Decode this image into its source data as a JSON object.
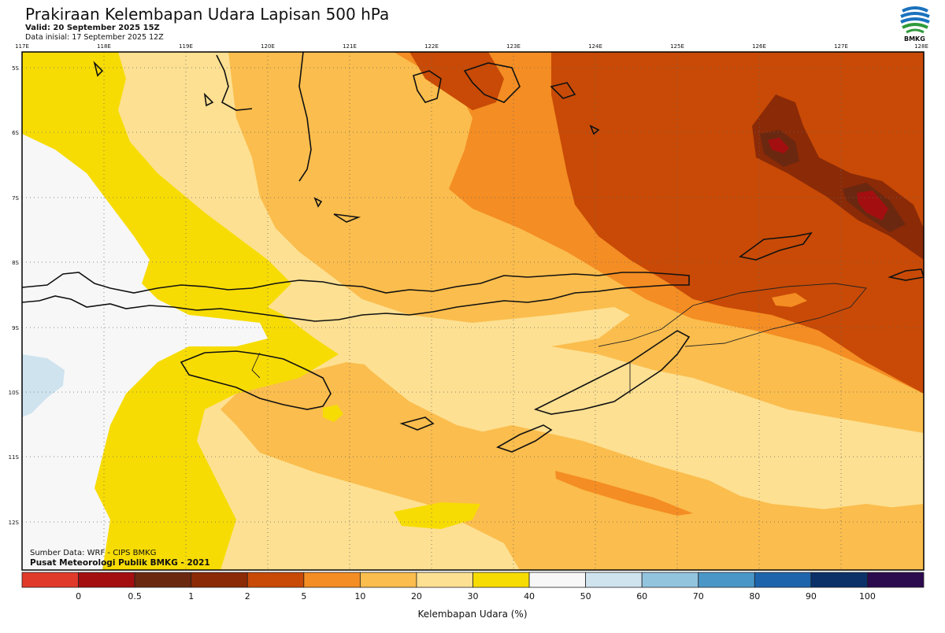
{
  "header": {
    "title": "Prakiraan Kelembapan Udara Lapisan 500 hPa",
    "valid": "Valid: 20 September 2025 15Z",
    "init": "Data inisial: 17 September 2025 12Z"
  },
  "logo": {
    "text": "BMKG",
    "icon": "bmkg-logo"
  },
  "map": {
    "lon_labels": [
      "117E",
      "118E",
      "119E",
      "120E",
      "121E",
      "122E",
      "123E",
      "124E",
      "125E",
      "126E",
      "127E",
      "128E"
    ],
    "lat_labels": [
      "5S",
      "6S",
      "7S",
      "8S",
      "9S",
      "10S",
      "11S",
      "12S"
    ]
  },
  "credits": {
    "source": "Sumber Data: WRF - CIPS BMKG",
    "publisher": "Pusat Meteorologi Publik BMKG - 2021"
  },
  "colorbar": {
    "title": "Kelembapan Udara (%)",
    "tick_labels": [
      "0",
      "0.5",
      "1",
      "2",
      "5",
      "10",
      "20",
      "30",
      "40",
      "50",
      "60",
      "70",
      "80",
      "90",
      "100"
    ],
    "colors": [
      "#e03a2b",
      "#a30f10",
      "#6b2810",
      "#8b2a07",
      "#c84a06",
      "#f48d23",
      "#fbbd4d",
      "#fde092",
      "#f7dc04",
      "#f7f7f7",
      "#cfe3ef",
      "#93c4de",
      "#4a97c7",
      "#1e64ad",
      "#0b3168",
      "#2b0a4e"
    ]
  }
}
